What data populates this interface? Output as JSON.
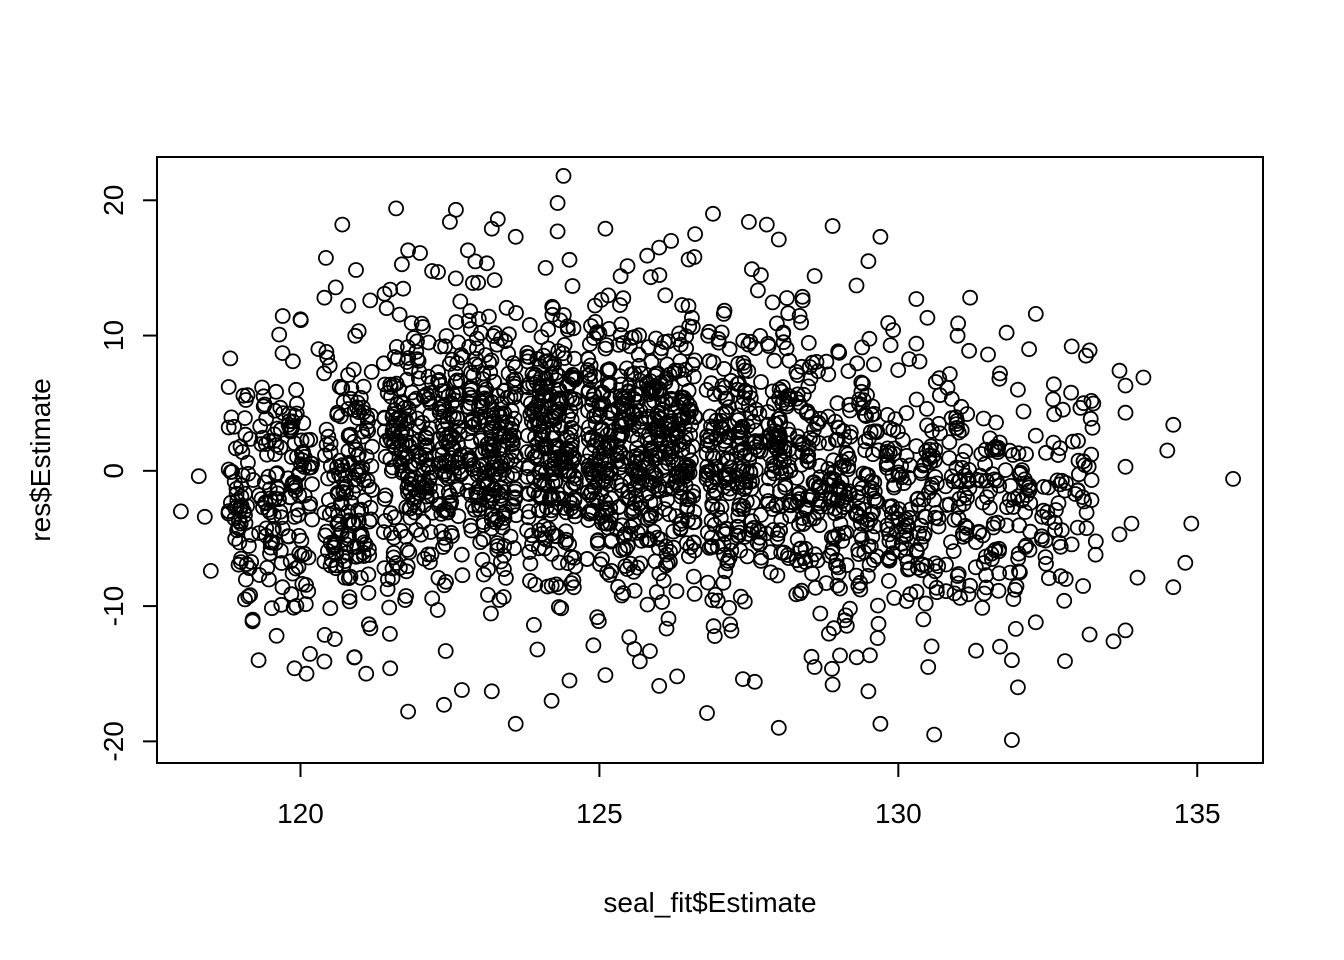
{
  "chart_data": {
    "type": "scatter",
    "title": "",
    "xlabel": "seal_fit$Estimate",
    "ylabel": "res$Estimate",
    "xlim": [
      117.6,
      136.1
    ],
    "ylim": [
      -21.6,
      23.2
    ],
    "x_ticks": [
      120,
      125,
      130,
      135
    ],
    "x_tick_labels": [
      "120",
      "125",
      "130",
      "135"
    ],
    "y_ticks": [
      -20,
      -10,
      0,
      10,
      20
    ],
    "y_tick_labels": [
      "-20",
      "-10",
      "0",
      "10",
      "20"
    ],
    "grid": false,
    "legend": "none",
    "marker": "open-circle",
    "marker_color": "#000000",
    "point_sample_note_visible": false,
    "x_clusters": [
      119.0,
      119.5,
      120.0,
      120.6,
      121.0,
      121.6,
      122.0,
      122.5,
      123.0,
      123.4,
      124.0,
      124.4,
      125.0,
      125.5,
      126.0,
      126.4,
      127.0,
      127.5,
      128.0,
      128.5,
      129.0,
      129.5,
      130.0,
      130.5,
      131.0,
      131.5,
      132.0,
      132.6,
      133.1
    ],
    "points": [
      [
        118.0,
        -3.0
      ],
      [
        118.3,
        -0.4
      ],
      [
        118.4,
        -3.4
      ],
      [
        118.5,
        -7.4
      ],
      [
        118.8,
        6.2
      ],
      [
        118.8,
        3.2
      ],
      [
        118.8,
        0.1
      ],
      [
        118.9,
        -0.8
      ],
      [
        119.0,
        -3.9
      ],
      [
        119.1,
        -6.9
      ],
      [
        119.2,
        -11.0
      ],
      [
        119.3,
        -14.0
      ],
      [
        119.4,
        4.9
      ],
      [
        119.6,
        -12.2
      ],
      [
        119.7,
        8.7
      ],
      [
        119.5,
        -5.3
      ],
      [
        119.8,
        3.4
      ],
      [
        119.9,
        -14.6
      ],
      [
        120.0,
        11.2
      ],
      [
        120.1,
        -15.0
      ],
      [
        120.3,
        9.0
      ],
      [
        120.4,
        12.8
      ],
      [
        120.4,
        -14.1
      ],
      [
        120.7,
        18.2
      ],
      [
        120.8,
        12.2
      ],
      [
        120.9,
        -13.8
      ],
      [
        121.1,
        -15.0
      ],
      [
        121.5,
        13.4
      ],
      [
        121.5,
        -14.6
      ],
      [
        121.6,
        19.4
      ],
      [
        121.8,
        16.3
      ],
      [
        121.8,
        -17.8
      ],
      [
        122.0,
        16.1
      ],
      [
        122.3,
        14.7
      ],
      [
        122.4,
        -17.3
      ],
      [
        122.5,
        18.4
      ],
      [
        122.6,
        19.3
      ],
      [
        122.8,
        16.3
      ],
      [
        122.7,
        -16.2
      ],
      [
        123.2,
        17.9
      ],
      [
        123.2,
        -16.3
      ],
      [
        123.3,
        18.6
      ],
      [
        123.6,
        -18.7
      ],
      [
        123.6,
        17.3
      ],
      [
        124.1,
        15.0
      ],
      [
        124.2,
        -17.0
      ],
      [
        124.3,
        19.8
      ],
      [
        124.4,
        21.8
      ],
      [
        124.3,
        17.7
      ],
      [
        124.5,
        -15.5
      ],
      [
        124.5,
        15.6
      ],
      [
        124.9,
        -12.9
      ],
      [
        125.1,
        17.9
      ],
      [
        125.1,
        -15.1
      ],
      [
        125.5,
        -12.3
      ],
      [
        125.8,
        15.9
      ],
      [
        126.0,
        16.5
      ],
      [
        126.0,
        -15.9
      ],
      [
        126.2,
        17.0
      ],
      [
        126.3,
        -15.2
      ],
      [
        126.6,
        17.5
      ],
      [
        126.8,
        -17.9
      ],
      [
        126.9,
        19.0
      ],
      [
        127.4,
        -15.4
      ],
      [
        127.5,
        18.4
      ],
      [
        127.6,
        -15.6
      ],
      [
        127.8,
        18.2
      ],
      [
        128.0,
        17.1
      ],
      [
        128.0,
        -19.0
      ],
      [
        128.4,
        12.6
      ],
      [
        128.6,
        14.4
      ],
      [
        128.6,
        -14.5
      ],
      [
        128.9,
        18.1
      ],
      [
        128.9,
        -15.8
      ],
      [
        129.3,
        13.7
      ],
      [
        129.5,
        15.5
      ],
      [
        129.5,
        -16.3
      ],
      [
        129.7,
        17.3
      ],
      [
        129.7,
        -18.7
      ],
      [
        130.3,
        12.7
      ],
      [
        130.3,
        9.4
      ],
      [
        130.5,
        -14.5
      ],
      [
        130.6,
        -19.5
      ],
      [
        131.0,
        10.9
      ],
      [
        131.2,
        12.8
      ],
      [
        131.3,
        -13.3
      ],
      [
        131.5,
        8.6
      ],
      [
        131.7,
        7.2
      ],
      [
        131.7,
        -13.0
      ],
      [
        131.9,
        -19.9
      ],
      [
        131.9,
        -14.0
      ],
      [
        132.0,
        -16.0
      ],
      [
        132.0,
        6.0
      ],
      [
        132.3,
        2.6
      ],
      [
        132.3,
        11.6
      ],
      [
        132.3,
        -11.2
      ],
      [
        132.6,
        6.4
      ],
      [
        132.8,
        -8.0
      ],
      [
        132.9,
        9.2
      ],
      [
        133.0,
        -4.2
      ],
      [
        133.1,
        5.0
      ],
      [
        133.2,
        8.9
      ],
      [
        133.2,
        -12.1
      ],
      [
        133.3,
        -6.2
      ],
      [
        133.7,
        -4.7
      ],
      [
        133.7,
        7.4
      ],
      [
        133.8,
        4.3
      ],
      [
        133.8,
        6.3
      ],
      [
        133.8,
        0.3
      ],
      [
        133.8,
        -11.8
      ],
      [
        133.9,
        -3.9
      ],
      [
        134.0,
        -7.9
      ],
      [
        134.1,
        6.9
      ],
      [
        134.5,
        1.5
      ],
      [
        134.6,
        3.4
      ],
      [
        134.6,
        -8.6
      ],
      [
        134.8,
        -6.8
      ],
      [
        134.9,
        -3.9
      ],
      [
        135.6,
        -0.6
      ],
      [
        133.6,
        -12.6
      ]
    ]
  }
}
